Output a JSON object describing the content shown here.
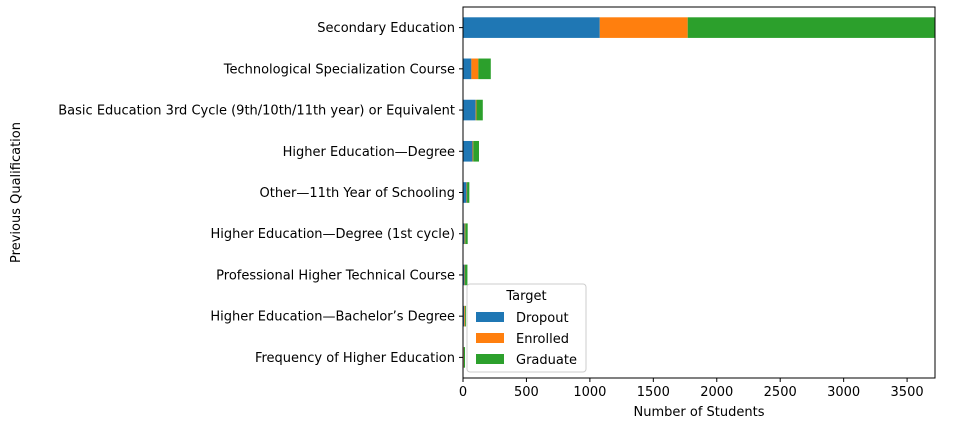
{
  "chart_data": {
    "type": "bar",
    "orientation": "horizontal",
    "stacked": true,
    "title": "",
    "xlabel": "Number of Students",
    "ylabel": "Previous Qualification",
    "xlim": [
      0,
      3720
    ],
    "xticks": [
      0,
      500,
      1000,
      1500,
      2000,
      2500,
      3000,
      3500
    ],
    "grid": false,
    "categories": [
      "Secondary Education",
      "Technological Specialization Course",
      "Basic Education 3rd Cycle (9th/10th/11th year) or Equivalent",
      "Higher Education—Degree",
      "Other—11th Year of Schooling",
      "Higher Education—Degree (1st cycle)",
      "Professional Higher Technical Course",
      "Higher Education—Bachelor’s Degree",
      "Frequency of Higher Education"
    ],
    "legend": {
      "title": "Target",
      "position": "lower-left"
    },
    "series": [
      {
        "name": "Dropout",
        "color": "#1f77b4",
        "values": [
          1078,
          66,
          100,
          75,
          28,
          12,
          12,
          10,
          6
        ]
      },
      {
        "name": "Enrolled",
        "color": "#ff7f0e",
        "values": [
          693,
          55,
          6,
          6,
          4,
          6,
          4,
          7,
          2
        ]
      },
      {
        "name": "Graduate",
        "color": "#2ca02c",
        "values": [
          1946,
          98,
          50,
          45,
          18,
          19,
          19,
          7,
          8
        ]
      }
    ]
  }
}
